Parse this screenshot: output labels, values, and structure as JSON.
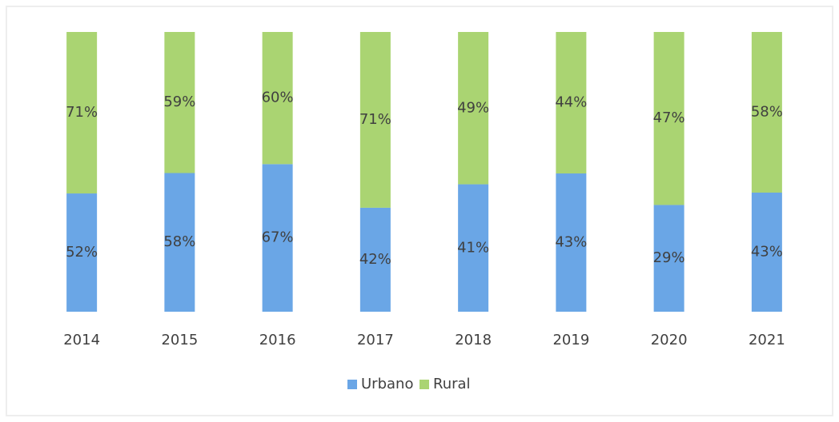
{
  "chart_data": {
    "type": "bar",
    "stacked": "percent",
    "categories": [
      "2014",
      "2015",
      "2016",
      "2017",
      "2018",
      "2019",
      "2020",
      "2021"
    ],
    "series": [
      {
        "name": "Urbano",
        "color": "#6aa6e6",
        "values": [
          52,
          58,
          67,
          42,
          41,
          43,
          29,
          43
        ],
        "value_labels": [
          "52%",
          "58%",
          "67%",
          "42%",
          "41%",
          "43%",
          "29%",
          "43%"
        ]
      },
      {
        "name": "Rural",
        "color": "#aad472",
        "values": [
          71,
          59,
          60,
          71,
          49,
          44,
          47,
          58
        ],
        "value_labels": [
          "71%",
          "59%",
          "60%",
          "71%",
          "49%",
          "44%",
          "47%",
          "58%"
        ]
      }
    ],
    "legend": "bottom"
  }
}
